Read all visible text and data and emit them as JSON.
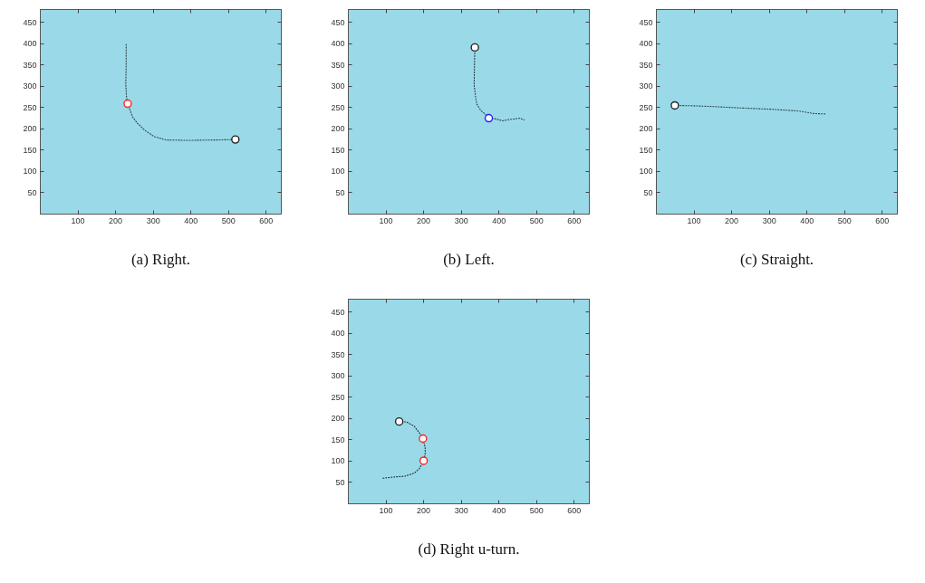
{
  "chart_data": [
    {
      "type": "line",
      "title": "(a) Right.",
      "xlim": [
        0,
        640
      ],
      "ylim": [
        0,
        480
      ],
      "xticks": [
        100,
        200,
        300,
        400,
        500,
        600
      ],
      "yticks": [
        50,
        100,
        150,
        200,
        250,
        300,
        350,
        400,
        450
      ],
      "series": [
        {
          "line_style": "dotted",
          "color": "#2a3f47",
          "x": [
            228,
            228,
            227,
            229,
            232,
            245,
            257,
            277,
            302,
            334,
            390,
            471,
            518
          ],
          "values": [
            398,
            350,
            304,
            274,
            259,
            228,
            214,
            197,
            182,
            174,
            173,
            174,
            175
          ]
        },
        {
          "type": "scatter",
          "marker": "circle",
          "color": "#222222",
          "x": [
            518
          ],
          "values": [
            175
          ]
        },
        {
          "type": "scatter",
          "marker": "circle",
          "color": "#ff2020",
          "x": [
            232
          ],
          "values": [
            259
          ]
        }
      ]
    },
    {
      "type": "line",
      "title": "(b) Left.",
      "xlim": [
        0,
        640
      ],
      "ylim": [
        0,
        480
      ],
      "xticks": [
        100,
        200,
        300,
        400,
        500,
        600
      ],
      "yticks": [
        50,
        100,
        150,
        200,
        250,
        300,
        350,
        400,
        450
      ],
      "series": [
        {
          "line_style": "dotted",
          "color": "#2a3f47",
          "x": [
            336,
            335,
            334,
            338,
            341,
            352,
            364,
            373,
            388,
            410,
            428,
            456,
            467
          ],
          "values": [
            391,
            350,
            304,
            274,
            258,
            243,
            234,
            225,
            224,
            219,
            222,
            225,
            221
          ]
        },
        {
          "type": "scatter",
          "marker": "circle",
          "color": "#222222",
          "x": [
            336
          ],
          "values": [
            391
          ]
        },
        {
          "type": "scatter",
          "marker": "circle",
          "color": "#2020ff",
          "x": [
            373
          ],
          "values": [
            225
          ]
        }
      ]
    },
    {
      "type": "line",
      "title": "(c) Straight.",
      "xlim": [
        0,
        640
      ],
      "ylim": [
        0,
        480
      ],
      "xticks": [
        100,
        200,
        300,
        400,
        500,
        600
      ],
      "yticks": [
        50,
        100,
        150,
        200,
        250,
        300,
        350,
        400,
        450
      ],
      "series": [
        {
          "line_style": "dotted",
          "color": "#2a3f47",
          "x": [
            49,
            104,
            160,
            224,
            305,
            377,
            417,
            449
          ],
          "values": [
            255,
            254,
            252,
            249,
            246,
            242,
            236,
            235
          ]
        },
        {
          "type": "scatter",
          "marker": "circle",
          "color": "#222222",
          "x": [
            49
          ],
          "values": [
            255
          ]
        }
      ]
    },
    {
      "type": "line",
      "title": "(d) Right u-turn.",
      "xlim": [
        0,
        640
      ],
      "ylim": [
        0,
        480
      ],
      "xticks": [
        100,
        200,
        300,
        400,
        500,
        600
      ],
      "yticks": [
        50,
        100,
        150,
        200,
        250,
        300,
        350,
        400,
        450
      ],
      "series": [
        {
          "line_style": "dotted",
          "color": "#1f2d33",
          "x": [
            135,
            155,
            175,
            188,
            198,
            204,
            204,
            200,
            188,
            175,
            151,
            123,
            92
          ],
          "values": [
            193,
            192,
            182,
            167,
            153,
            132,
            117,
            101,
            82,
            72,
            65,
            63,
            60
          ]
        },
        {
          "type": "scatter",
          "marker": "circle",
          "color": "#222222",
          "x": [
            135
          ],
          "values": [
            193
          ]
        },
        {
          "type": "scatter",
          "marker": "circle",
          "color": "#ff2020",
          "x": [
            198,
            200
          ],
          "values": [
            153,
            101
          ]
        }
      ]
    }
  ]
}
